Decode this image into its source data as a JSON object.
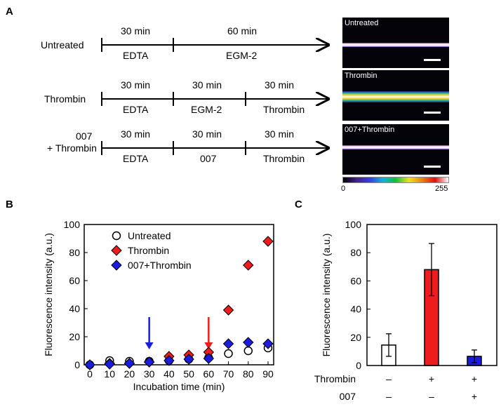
{
  "panel_labels": [
    "A",
    "B",
    "C"
  ],
  "timeline": {
    "rows": [
      {
        "name": "Untreated",
        "segments": [
          {
            "time": "30 min",
            "label": "EDTA"
          },
          {
            "time": "60 min",
            "label": "EGM-2"
          }
        ]
      },
      {
        "name": "Thrombin",
        "segments": [
          {
            "time": "30 min",
            "label": "EDTA"
          },
          {
            "time": "30 min",
            "label": "EGM-2"
          },
          {
            "time": "30 min",
            "label": "Thrombin"
          }
        ]
      },
      {
        "name_line1": "007",
        "name_line2": "+ Thrombin",
        "segments": [
          {
            "time": "30 min",
            "label": "EDTA"
          },
          {
            "time": "30 min",
            "label": "007"
          },
          {
            "time": "30 min",
            "label": "Thrombin"
          }
        ]
      }
    ]
  },
  "images": {
    "labels": [
      "Untreated",
      "Thrombin",
      "007+Thrombin"
    ],
    "colorbar_min": "0",
    "colorbar_max": "255"
  },
  "chart_data": [
    {
      "type": "scatter",
      "xlabel": "Incubation time (min)",
      "ylabel": "Fluorescence intensity (a.u.)",
      "xlim": [
        0,
        90
      ],
      "ylim": [
        0,
        100
      ],
      "xticks": [
        0,
        10,
        20,
        30,
        40,
        50,
        60,
        70,
        80,
        90
      ],
      "yticks": [
        0,
        20,
        40,
        60,
        80,
        100
      ],
      "legend": "top-left",
      "x": [
        0,
        10,
        20,
        30,
        40,
        50,
        60,
        70,
        80,
        90
      ],
      "series": [
        {
          "name": "Untreated",
          "marker": "circle-open",
          "color": "#ffffff",
          "values": [
            0,
            3,
            2.5,
            2.5,
            3,
            4,
            5,
            8,
            10,
            12
          ]
        },
        {
          "name": "Thrombin",
          "marker": "diamond",
          "color": "#ee1c1c",
          "values": [
            0,
            1,
            1,
            2,
            6,
            7,
            9,
            39,
            71,
            88
          ]
        },
        {
          "name": "007+Thrombin",
          "marker": "diamond",
          "color": "#1c1ce0",
          "values": [
            0,
            0.5,
            1,
            2,
            3,
            4,
            4.5,
            15,
            16,
            15
          ]
        }
      ],
      "annotations": [
        {
          "type": "arrow",
          "x": 30,
          "color": "#1c1ce0"
        },
        {
          "type": "arrow",
          "x": 60,
          "color": "#ee1c1c"
        }
      ]
    },
    {
      "type": "bar",
      "ylabel": "Fluorescence intensity (a.u.)",
      "ylim": [
        0,
        100
      ],
      "yticks": [
        0,
        20,
        40,
        60,
        80,
        100
      ],
      "values": [
        14.5,
        68,
        6.5
      ],
      "errors": [
        8,
        18.5,
        4.5
      ],
      "colors": [
        "#ffffff",
        "#ee1c1c",
        "#1c1ce0"
      ],
      "conditions": [
        {
          "name": "Thrombin",
          "signs": [
            "–",
            "+",
            "+"
          ]
        },
        {
          "name": "007",
          "signs": [
            "–",
            "–",
            "+"
          ]
        }
      ]
    }
  ]
}
